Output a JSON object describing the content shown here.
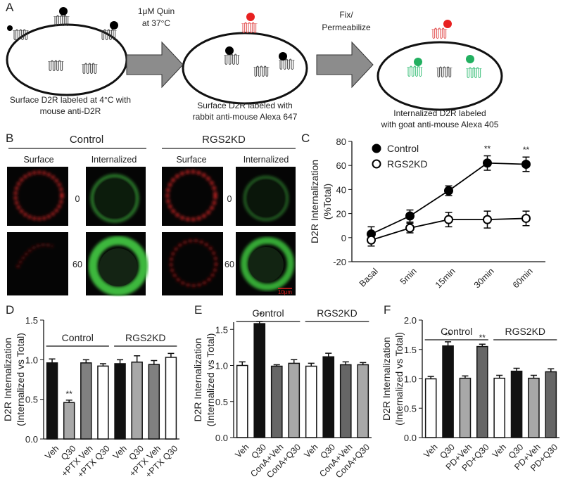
{
  "panel_labels": [
    "A",
    "B",
    "C",
    "D",
    "E",
    "F"
  ],
  "diagram": {
    "arrows": [
      [
        "1μM Quin",
        "at 37°C"
      ],
      [
        "Fix/",
        "Permeabilize"
      ]
    ],
    "captions": [
      [
        "Surface D2R labeled at 4°C with",
        "mouse anti-D2R"
      ],
      [
        "Surface D2R labeled with",
        "rabbit anti-mouse Alexa 647"
      ],
      [
        "Internalized D2R labeled",
        "with goat anti-mouse Alexa 405"
      ]
    ]
  },
  "images": {
    "groups": [
      "Control",
      "RGS2KD"
    ],
    "columns": [
      "Surface",
      "Internalized"
    ],
    "times": [
      "0",
      "60"
    ],
    "scale_bar": "10μm"
  },
  "chart_data": [
    {
      "type": "line",
      "ylabel": [
        "D2R Internalization",
        "(%Total)"
      ],
      "categories": [
        "Basal",
        "5min",
        "15min",
        "30min",
        "60min"
      ],
      "series": [
        {
          "name": "Control",
          "color": "#000000",
          "fill": "#000000",
          "values": [
            3,
            18,
            39,
            62,
            61
          ],
          "errors": [
            6,
            5,
            4,
            6,
            6
          ],
          "significance": [
            null,
            null,
            null,
            "**",
            "**"
          ]
        },
        {
          "name": "RGS2KD",
          "color": "#000000",
          "fill": "#ffffff",
          "values": [
            -2,
            8,
            15,
            15,
            16
          ],
          "errors": [
            5,
            4,
            6,
            7,
            6
          ]
        }
      ],
      "ylim": [
        -20,
        80
      ],
      "yticks": [
        -20,
        0,
        20,
        40,
        60,
        80
      ]
    },
    {
      "type": "bar",
      "ylabel": [
        "D2R Internalization",
        "(Internalized vs Total)"
      ],
      "groups": [
        "Control",
        "RGS2KD"
      ],
      "categories": [
        "Veh",
        "Q30",
        "+PTX Veh",
        "+PTX Q30",
        "Veh",
        "Q30",
        "+PTX Veh",
        "+PTX Q30"
      ],
      "values": [
        0.96,
        0.46,
        0.96,
        0.92,
        0.95,
        0.97,
        0.94,
        1.03
      ],
      "errors": [
        0.05,
        0.03,
        0.04,
        0.03,
        0.05,
        0.08,
        0.05,
        0.05
      ],
      "significance": [
        null,
        "**",
        null,
        null,
        null,
        null,
        null,
        null
      ],
      "colors": [
        "#111111",
        "#a8a8a8",
        "#808080",
        "#ffffff",
        "#111111",
        "#a8a8a8",
        "#808080",
        "#ffffff"
      ],
      "ylim": [
        0,
        1.5
      ],
      "yticks": [
        {
          "value": 0,
          "label": "0.0"
        },
        0.5,
        {
          "value": 1,
          "label": "1.0"
        },
        1.5
      ]
    },
    {
      "type": "bar",
      "ylabel": [
        "D2R Internalization",
        "(Internalized vs Total)"
      ],
      "groups": [
        "Control",
        "RGS2KD"
      ],
      "categories": [
        "Veh",
        "Q30",
        "ConA+Veh",
        "ConA+Q30",
        "Veh",
        "Q30",
        "ConA+Veh",
        "ConA+Q30"
      ],
      "values": [
        1.0,
        1.58,
        0.99,
        1.03,
        0.99,
        1.12,
        1.01,
        1.01
      ],
      "errors": [
        0.05,
        0.03,
        0.02,
        0.05,
        0.04,
        0.05,
        0.04,
        0.03
      ],
      "significance": [
        null,
        "**",
        null,
        null,
        null,
        null,
        null,
        null
      ],
      "colors": [
        "#ffffff",
        "#111111",
        "#666666",
        "#a8a8a8",
        "#ffffff",
        "#111111",
        "#666666",
        "#a8a8a8"
      ],
      "ylim": [
        0,
        1.6
      ],
      "yticks": [
        {
          "value": 0,
          "label": "0.0"
        },
        0.5,
        {
          "value": 1,
          "label": "1.0"
        },
        1.5
      ]
    },
    {
      "type": "bar",
      "ylabel": [
        "D2R Internalization",
        "(Internalized vs Total)"
      ],
      "groups": [
        "Control",
        "RGS2KD"
      ],
      "categories": [
        "Veh",
        "Q30",
        "PD+Veh",
        "PD+Q30",
        "Veh",
        "Q30",
        "PD+Veh",
        "PD+Q30"
      ],
      "values": [
        1.0,
        1.56,
        1.01,
        1.55,
        1.01,
        1.13,
        1.01,
        1.12
      ],
      "errors": [
        0.04,
        0.07,
        0.04,
        0.04,
        0.05,
        0.05,
        0.05,
        0.05
      ],
      "significance": [
        null,
        "**",
        null,
        "**",
        null,
        null,
        null,
        null
      ],
      "colors": [
        "#ffffff",
        "#111111",
        "#a8a8a8",
        "#666666",
        "#ffffff",
        "#111111",
        "#a8a8a8",
        "#666666"
      ],
      "ylim": [
        0,
        2.0
      ],
      "yticks": [
        {
          "value": 0,
          "label": "0.0"
        },
        0.5,
        {
          "value": 1,
          "label": "1.0"
        },
        1.5,
        {
          "value": 2,
          "label": "2.0"
        }
      ]
    }
  ]
}
